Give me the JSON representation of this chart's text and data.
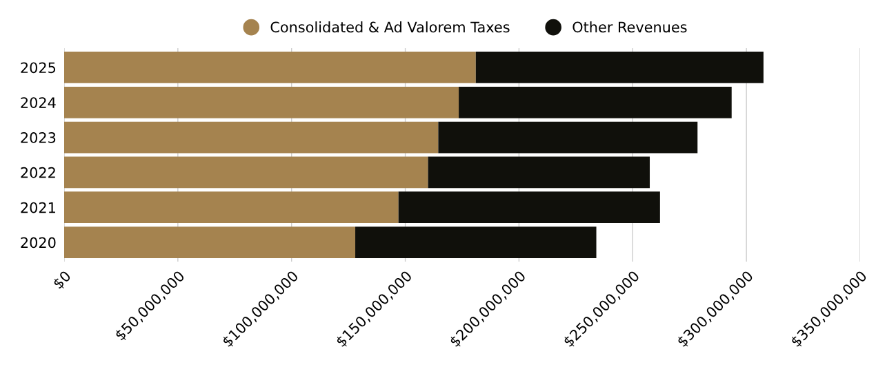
{
  "chart_data": {
    "type": "bar",
    "orientation": "horizontal",
    "stacked": true,
    "categories": [
      "2025",
      "2024",
      "2023",
      "2022",
      "2021",
      "2020"
    ],
    "series": [
      {
        "name": "Consolidated & Ad Valorem Taxes",
        "color": "#a5834f",
        "values": [
          181000000,
          173500000,
          164500000,
          160000000,
          147000000,
          128000000
        ]
      },
      {
        "name": "Other Revenues",
        "color": "#10100b",
        "values": [
          126500000,
          120000000,
          114000000,
          97500000,
          115000000,
          106000000
        ]
      }
    ],
    "xlim": [
      0,
      350000000
    ],
    "xticks": [
      {
        "value": 0,
        "label": "$0"
      },
      {
        "value": 50000000,
        "label": "$50,000,000"
      },
      {
        "value": 100000000,
        "label": "$100,000,000"
      },
      {
        "value": 150000000,
        "label": "$150,000,000"
      },
      {
        "value": 200000000,
        "label": "$200,000,000"
      },
      {
        "value": 250000000,
        "label": "$250,000,000"
      },
      {
        "value": 300000000,
        "label": "$300,000,000"
      },
      {
        "value": 350000000,
        "label": "$350,000,000"
      }
    ],
    "grid": "x",
    "legend": "top"
  }
}
